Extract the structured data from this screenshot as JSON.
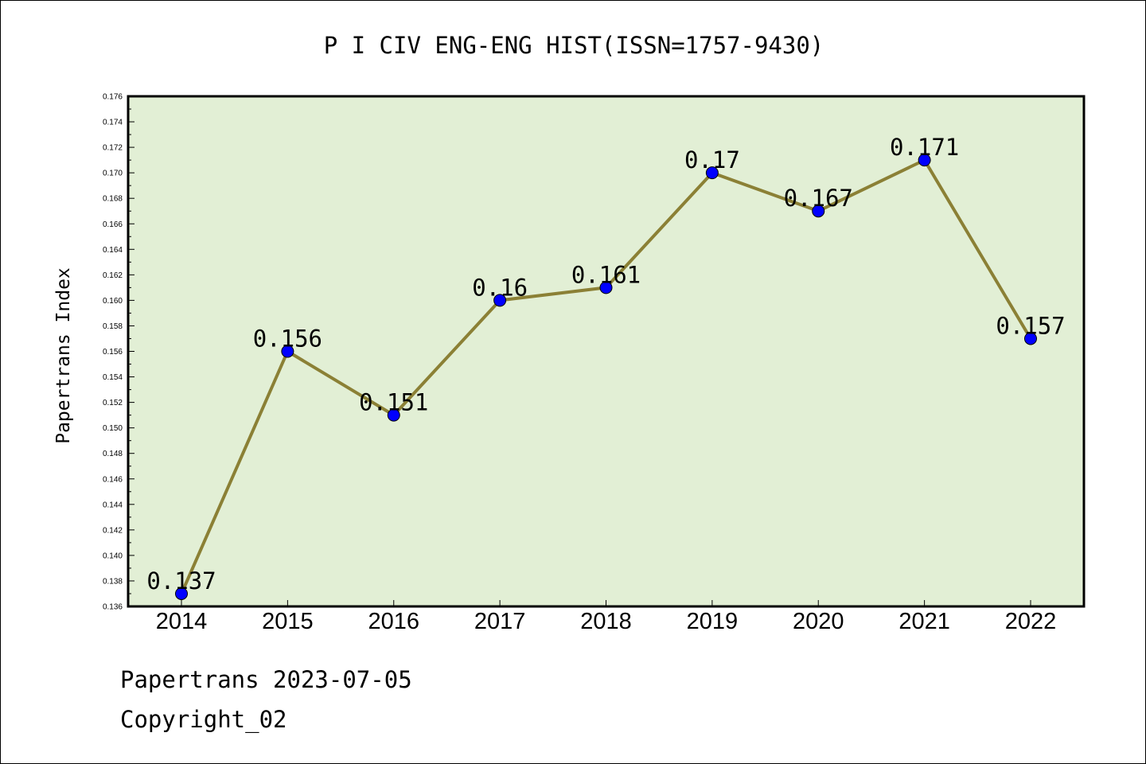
{
  "colors": {
    "plot_background": "#e2efd5",
    "line": "#8b8035",
    "marker_fill": "#0000ff",
    "marker_edge": "#000000"
  },
  "footer": {
    "source_line": "Papertrans 2023-07-05",
    "copyright_line": "Copyright_02"
  },
  "chart_data": {
    "type": "line",
    "title": "P I CIV ENG-ENG HIST(ISSN=1757-9430)",
    "xlabel": "",
    "ylabel": "Papertrans Index",
    "categories": [
      "2014",
      "2015",
      "2016",
      "2017",
      "2018",
      "2019",
      "2020",
      "2021",
      "2022"
    ],
    "values": [
      0.137,
      0.156,
      0.151,
      0.16,
      0.161,
      0.17,
      0.167,
      0.171,
      0.157
    ],
    "data_labels": [
      "0.137",
      "0.156",
      "0.151",
      "0.16",
      "0.161",
      "0.17",
      "0.167",
      "0.171",
      "0.157"
    ],
    "ylim": [
      0.136,
      0.176
    ],
    "yticks": [
      0.136,
      0.138,
      0.14,
      0.142,
      0.144,
      0.146,
      0.148,
      0.15,
      0.152,
      0.154,
      0.156,
      0.158,
      0.16,
      0.162,
      0.164,
      0.166,
      0.168,
      0.17,
      0.172,
      0.174,
      0.176
    ],
    "ytick_labels": [
      "0.136",
      "0.138",
      "0.140",
      "0.142",
      "0.144",
      "0.146",
      "0.148",
      "0.150",
      "0.152",
      "0.154",
      "0.156",
      "0.158",
      "0.160",
      "0.162",
      "0.164",
      "0.166",
      "0.168",
      "0.170",
      "0.172",
      "0.174",
      "0.176"
    ],
    "grid": false,
    "legend": "none"
  }
}
